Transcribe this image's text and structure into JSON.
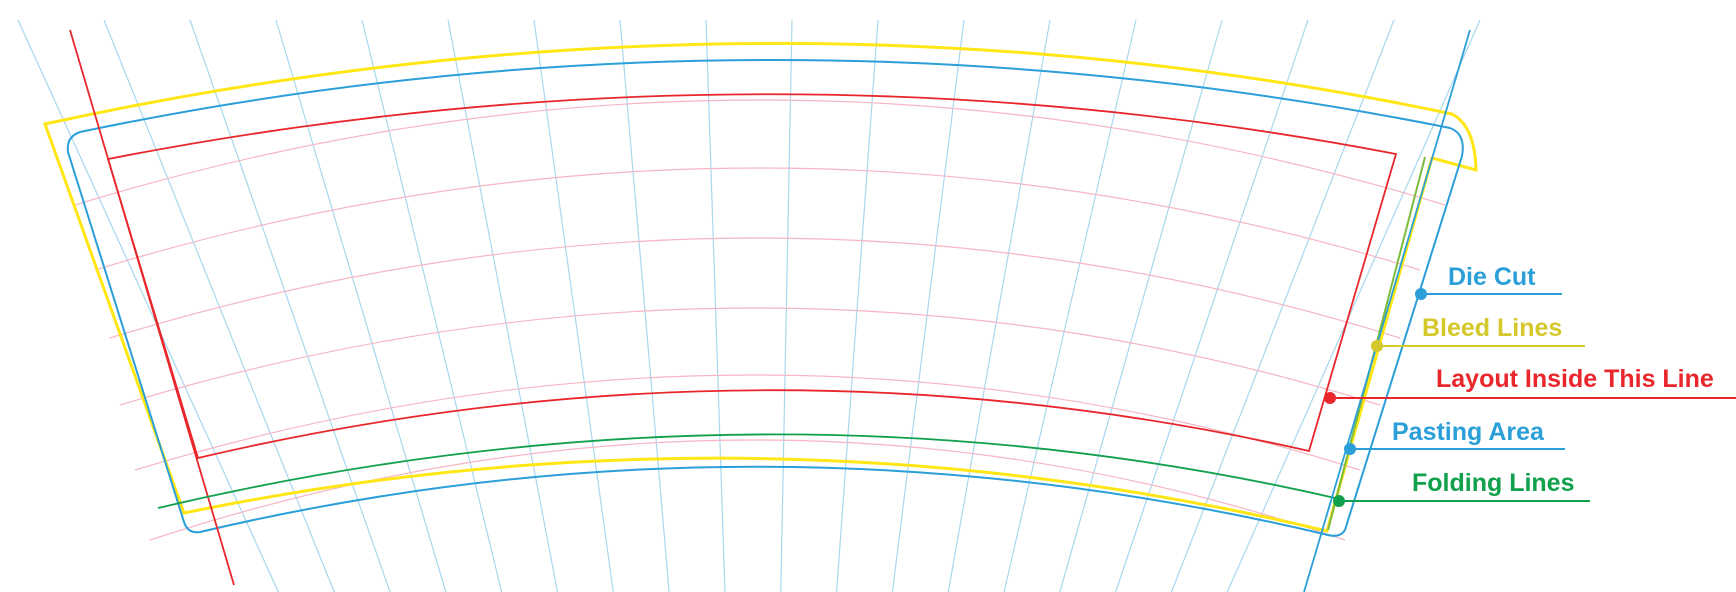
{
  "legend": [
    {
      "label": "Die Cut",
      "color": "#2a9fd8"
    },
    {
      "label": "Bleed Lines",
      "color": "#d4c82a"
    },
    {
      "label": "Layout Inside This Line",
      "color": "#e8262b"
    },
    {
      "label": "Pasting Area",
      "color": "#2a9fd8"
    },
    {
      "label": "Folding Lines",
      "color": "#11a04b"
    }
  ],
  "colors": {
    "die_cut": "#2a9fd8",
    "bleed": "#ffe614",
    "bleed_marker": "#d4c82a",
    "safe_area": "#e8262b",
    "folding": "#11a04b",
    "pasting_guide": "#7dbb3c",
    "grid_radial": "#a8d7ee",
    "grid_arc": "#f6b6c3"
  }
}
